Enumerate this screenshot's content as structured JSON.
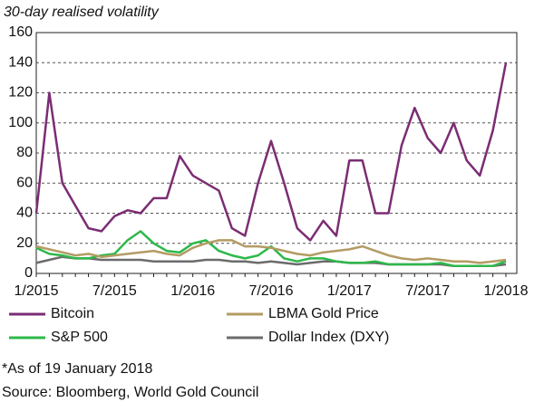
{
  "chart_data": {
    "type": "line",
    "title": "30-day realised volatility",
    "categories": [
      "1/2015",
      null,
      null,
      null,
      null,
      null,
      "7/2015",
      null,
      null,
      null,
      null,
      null,
      "1/2016",
      null,
      null,
      null,
      null,
      null,
      "7/2016",
      null,
      null,
      null,
      null,
      null,
      "1/2017",
      null,
      null,
      null,
      null,
      null,
      "7/2017",
      null,
      null,
      null,
      null,
      null,
      "1/2018"
    ],
    "series": [
      {
        "name": "Bitcoin",
        "color": "#7b2d74",
        "values": [
          40,
          120,
          60,
          45,
          30,
          28,
          38,
          42,
          40,
          50,
          50,
          78,
          65,
          60,
          55,
          30,
          25,
          60,
          88,
          60,
          30,
          22,
          35,
          25,
          75,
          75,
          40,
          40,
          85,
          110,
          90,
          80,
          100,
          75,
          65,
          95,
          140
        ]
      },
      {
        "name": "LBMA Gold Price",
        "color": "#b39b63",
        "values": [
          18,
          16,
          14,
          12,
          13,
          11,
          12,
          13,
          14,
          15,
          13,
          12,
          17,
          20,
          22,
          22,
          18,
          18,
          17,
          15,
          13,
          12,
          14,
          15,
          16,
          18,
          15,
          12,
          10,
          9,
          10,
          9,
          8,
          8,
          7,
          8,
          9
        ]
      },
      {
        "name": "S&P 500",
        "color": "#2db84a",
        "values": [
          17,
          13,
          12,
          10,
          10,
          12,
          13,
          22,
          28,
          20,
          15,
          14,
          20,
          22,
          15,
          12,
          10,
          12,
          18,
          10,
          8,
          10,
          10,
          8,
          7,
          7,
          8,
          6,
          6,
          6,
          6,
          7,
          5,
          5,
          5,
          5,
          8
        ]
      },
      {
        "name": "Dollar Index (DXY)",
        "color": "#6b6b6b",
        "values": [
          7,
          9,
          11,
          10,
          10,
          9,
          9,
          9,
          9,
          8,
          8,
          8,
          8,
          9,
          9,
          8,
          8,
          7,
          8,
          7,
          6,
          7,
          8,
          8,
          7,
          7,
          7,
          6,
          6,
          6,
          6,
          6,
          5,
          5,
          5,
          5,
          6
        ]
      }
    ],
    "ylim": [
      0,
      160
    ],
    "yticks": [
      0,
      20,
      40,
      60,
      80,
      100,
      120,
      140,
      160
    ],
    "grid": true,
    "footnote": "*As of 19 January 2018",
    "source": "Source: Bloomberg, World Gold Council"
  }
}
